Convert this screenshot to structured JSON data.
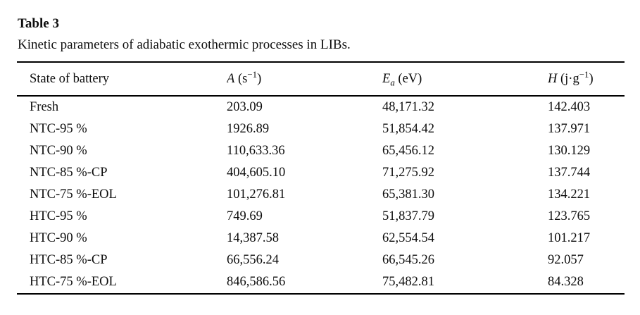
{
  "page": {
    "label": "Table 3",
    "caption": "Kinetic parameters of adiabatic exothermic processes in LIBs."
  },
  "table": {
    "columns": {
      "state": {
        "label": "State of battery"
      },
      "a": {
        "symbol": "A",
        "unit_pre": " (s",
        "sup": "−1",
        "unit_post": ")"
      },
      "ea": {
        "symbol": "E",
        "sub": "a",
        "unit": " (eV)"
      },
      "h": {
        "symbol": "H",
        "unit_pre": " (j·g",
        "sup": "−1",
        "unit_post": ")"
      }
    },
    "rows": [
      {
        "state": "Fresh",
        "a": "203.09",
        "ea": "48,171.32",
        "h": "142.403"
      },
      {
        "state": "NTC-95 %",
        "a": "1926.89",
        "ea": "51,854.42",
        "h": "137.971"
      },
      {
        "state": "NTC-90 %",
        "a": "110,633.36",
        "ea": "65,456.12",
        "h": "130.129"
      },
      {
        "state": "NTC-85 %-CP",
        "a": "404,605.10",
        "ea": "71,275.92",
        "h": "137.744"
      },
      {
        "state": "NTC-75 %-EOL",
        "a": "101,276.81",
        "ea": "65,381.30",
        "h": "134.221"
      },
      {
        "state": "HTC-95 %",
        "a": "749.69",
        "ea": "51,837.79",
        "h": "123.765"
      },
      {
        "state": "HTC-90 %",
        "a": "14,387.58",
        "ea": "62,554.54",
        "h": "101.217"
      },
      {
        "state": "HTC-85 %-CP",
        "a": "66,556.24",
        "ea": "66,545.26",
        "h": "92.057"
      },
      {
        "state": "HTC-75 %-EOL",
        "a": "846,586.56",
        "ea": "75,482.81",
        "h": "84.328"
      }
    ]
  },
  "colors": {
    "background": "#ffffff",
    "text": "#0d0d0d",
    "rule": "#000000"
  }
}
